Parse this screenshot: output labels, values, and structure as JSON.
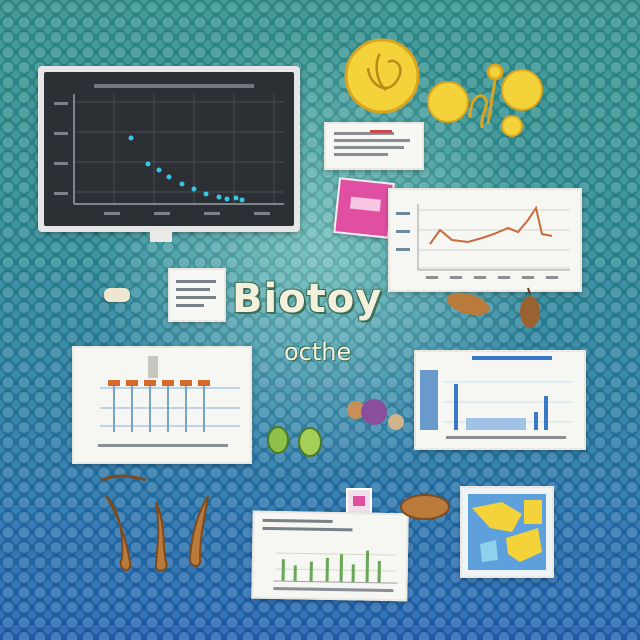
{
  "headline": "Biotoy",
  "subline": "octhe",
  "colors": {
    "teal_bg": "#2f8f8c",
    "blue_bg": "#1d5fb0",
    "headline_fill": "#f3f1dd",
    "headline_outline": "#3a6f55",
    "line_orange": "#c96b3a",
    "bar_blue": "#3a78c8",
    "bar_orange": "#d56a2c",
    "scatter_cyan": "#38c6e8",
    "gold": "#f3d23a",
    "brown": "#b97a3b",
    "pink": "#e04fa2"
  },
  "icons": {
    "coin": "gold-coin-icon",
    "pin": "pin-icon",
    "seed": "seed-icon",
    "beans": "green-beans-icon",
    "berry": "berry-icon",
    "scroll": "parchment-icon",
    "bottle": "pink-label-icon"
  }
}
